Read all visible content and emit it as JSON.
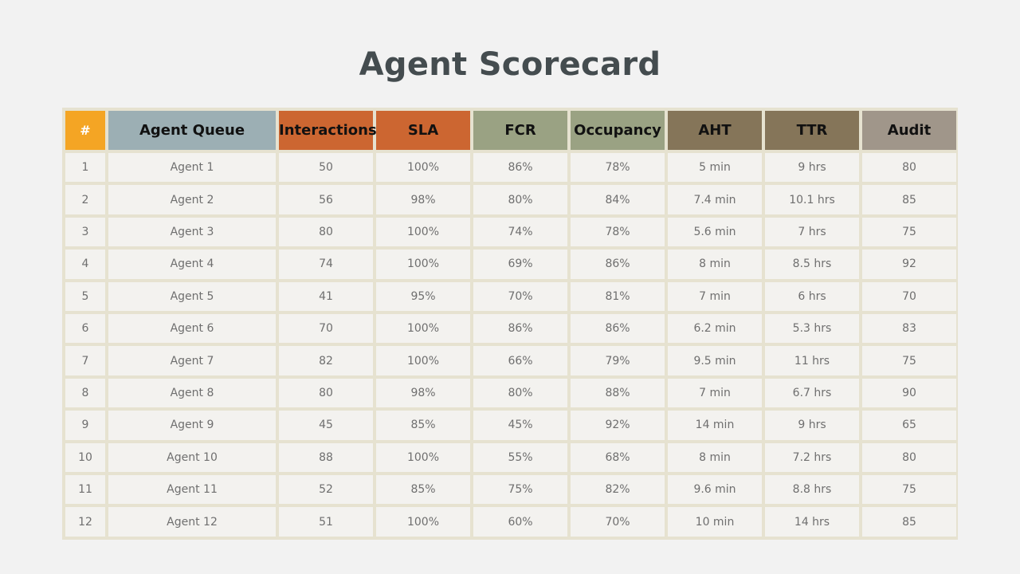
{
  "title": "Agent Scorecard",
  "colors": {
    "background": "#f2f2f2",
    "title": "#444c4f",
    "table_border": "#e6e2d0",
    "header_backgrounds": [
      "#f4a524",
      "#9cafb4",
      "#cc6631",
      "#cc6631",
      "#9aa283",
      "#9aa283",
      "#857559",
      "#857559",
      "#a0968a"
    ]
  },
  "table": {
    "headers": [
      "#",
      "Agent Queue",
      "Interactions",
      "SLA",
      "FCR",
      "Occupancy",
      "AHT",
      "TTR",
      "Audit"
    ],
    "rows": [
      [
        "1",
        "Agent 1",
        "50",
        "100%",
        "86%",
        "78%",
        "5 min",
        "9 hrs",
        "80"
      ],
      [
        "2",
        "Agent 2",
        "56",
        "98%",
        "80%",
        "84%",
        "7.4 min",
        "10.1 hrs",
        "85"
      ],
      [
        "3",
        "Agent 3",
        "80",
        "100%",
        "74%",
        "78%",
        "5.6 min",
        "7 hrs",
        "75"
      ],
      [
        "4",
        "Agent 4",
        "74",
        "100%",
        "69%",
        "86%",
        "8 min",
        "8.5 hrs",
        "92"
      ],
      [
        "5",
        "Agent 5",
        "41",
        "95%",
        "70%",
        "81%",
        "7 min",
        "6 hrs",
        "70"
      ],
      [
        "6",
        "Agent 6",
        "70",
        "100%",
        "86%",
        "86%",
        "6.2 min",
        "5.3 hrs",
        "83"
      ],
      [
        "7",
        "Agent 7",
        "82",
        "100%",
        "66%",
        "79%",
        "9.5 min",
        "11 hrs",
        "75"
      ],
      [
        "8",
        "Agent 8",
        "80",
        "98%",
        "80%",
        "88%",
        "7 min",
        "6.7 hrs",
        "90"
      ],
      [
        "9",
        "Agent 9",
        "45",
        "85%",
        "45%",
        "92%",
        "14 min",
        "9 hrs",
        "65"
      ],
      [
        "10",
        "Agent 10",
        "88",
        "100%",
        "55%",
        "68%",
        "8 min",
        "7.2 hrs",
        "80"
      ],
      [
        "11",
        "Agent 11",
        "52",
        "85%",
        "75%",
        "82%",
        "9.6 min",
        "8.8 hrs",
        "75"
      ],
      [
        "12",
        "Agent 12",
        "51",
        "100%",
        "60%",
        "70%",
        "10 min",
        "14 hrs",
        "85"
      ]
    ]
  }
}
